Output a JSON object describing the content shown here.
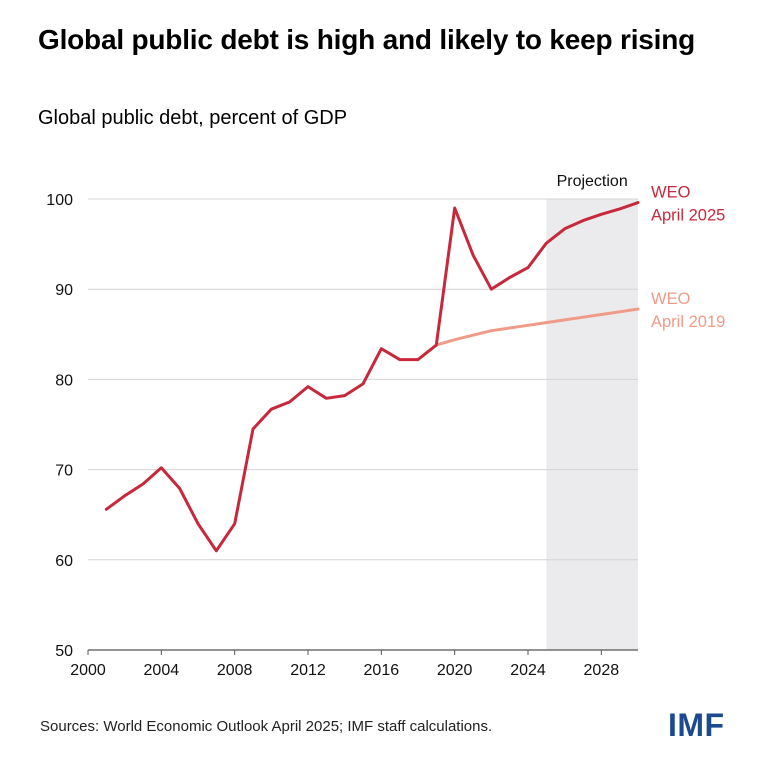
{
  "title": "Global public debt is high and likely to keep rising",
  "subtitle": "Global public debt, percent of GDP",
  "source": "Sources: World Economic Outlook April 2025; IMF staff calculations.",
  "logo": "IMF",
  "colors": {
    "weo2025": "#c8283c",
    "weo2019": "#ef9b88",
    "projection": "#ebebed",
    "grid": "#d4d4d4"
  },
  "chart_data": {
    "type": "line",
    "xlim": [
      2000,
      2030
    ],
    "ylim": [
      50,
      100
    ],
    "x_ticks": [
      "2000",
      "2004",
      "2008",
      "2012",
      "2016",
      "2020",
      "2024",
      "2028"
    ],
    "x_tick_values": [
      2000,
      2004,
      2008,
      2012,
      2016,
      2020,
      2024,
      2028
    ],
    "y_ticks": [
      "50",
      "60",
      "70",
      "80",
      "90",
      "100"
    ],
    "y_tick_values": [
      50,
      60,
      70,
      80,
      90,
      100
    ],
    "grid": "horizontal",
    "projection": {
      "label": "Projection",
      "from": 2025,
      "to": 2030
    },
    "series": [
      {
        "name": "WEO April 2025",
        "label_lines": [
          "WEO",
          "April 2025"
        ],
        "color": "#c8283c",
        "points": [
          [
            2001,
            65.6
          ],
          [
            2002,
            67.1
          ],
          [
            2003,
            68.4
          ],
          [
            2004,
            70.2
          ],
          [
            2005,
            67.9
          ],
          [
            2006,
            64.0
          ],
          [
            2007,
            61.0
          ],
          [
            2008,
            64.0
          ],
          [
            2009,
            74.5
          ],
          [
            2010,
            76.7
          ],
          [
            2011,
            77.5
          ],
          [
            2012,
            79.2
          ],
          [
            2013,
            77.9
          ],
          [
            2014,
            78.2
          ],
          [
            2015,
            79.5
          ],
          [
            2016,
            83.4
          ],
          [
            2017,
            82.2
          ],
          [
            2018,
            82.2
          ],
          [
            2019,
            83.8
          ],
          [
            2020,
            99.0
          ],
          [
            2021,
            93.8
          ],
          [
            2022,
            90.0
          ],
          [
            2023,
            91.3
          ],
          [
            2024,
            92.4
          ],
          [
            2025,
            95.1
          ],
          [
            2026,
            96.7
          ],
          [
            2027,
            97.6
          ],
          [
            2028,
            98.3
          ],
          [
            2029,
            98.9
          ],
          [
            2030,
            99.6
          ]
        ]
      },
      {
        "name": "WEO April 2019",
        "label_lines": [
          "WEO",
          "April 2019"
        ],
        "color": "#ef9b88",
        "points": [
          [
            2019,
            83.8
          ],
          [
            2020,
            84.4
          ],
          [
            2021,
            84.9
          ],
          [
            2022,
            85.4
          ],
          [
            2023,
            85.7
          ],
          [
            2024,
            86.0
          ],
          [
            2025,
            86.3
          ],
          [
            2026,
            86.6
          ],
          [
            2027,
            86.9
          ],
          [
            2028,
            87.2
          ],
          [
            2029,
            87.5
          ],
          [
            2030,
            87.8
          ]
        ]
      }
    ]
  }
}
